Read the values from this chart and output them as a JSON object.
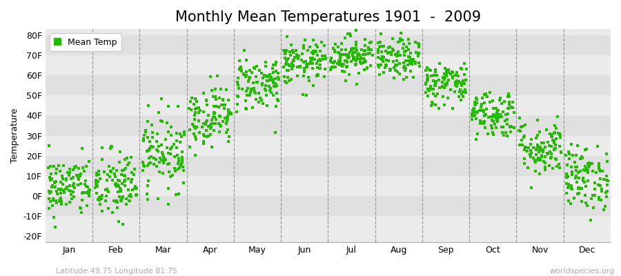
{
  "title": "Monthly Mean Temperatures 1901  -  2009",
  "ylabel": "Temperature",
  "yticks": [
    -20,
    -10,
    0,
    10,
    20,
    30,
    40,
    50,
    60,
    70,
    80
  ],
  "ytick_labels": [
    "-20F",
    "-10F",
    "0F",
    "10F",
    "20F",
    "30F",
    "40F",
    "50F",
    "60F",
    "70F",
    "80F"
  ],
  "ylim": [
    -23,
    83
  ],
  "month_labels": [
    "Jan",
    "Feb",
    "Mar",
    "Apr",
    "May",
    "Jun",
    "Jul",
    "Aug",
    "Sep",
    "Oct",
    "Nov",
    "Dec"
  ],
  "dot_color": "#22bb00",
  "bg_color": "#ffffff",
  "plot_bg_color": "#ebebeb",
  "plot_bg_color_alt": "#e0e0e0",
  "legend_label": "Mean Temp",
  "footnote_left": "Latitude 49.75 Longitude 81.75",
  "footnote_right": "worldspecies.org",
  "title_fontsize": 15,
  "axis_label_fontsize": 9,
  "tick_fontsize": 9,
  "footnote_fontsize": 8,
  "monthly_means": [
    4.5,
    5.0,
    22.0,
    40.0,
    56.0,
    66.0,
    70.0,
    68.0,
    56.0,
    41.0,
    24.0,
    9.0
  ],
  "monthly_spreads": [
    7.5,
    9.0,
    9.5,
    7.5,
    7.0,
    5.5,
    5.0,
    5.0,
    5.5,
    6.0,
    7.0,
    8.0
  ],
  "n_years": 109,
  "seed": 42
}
